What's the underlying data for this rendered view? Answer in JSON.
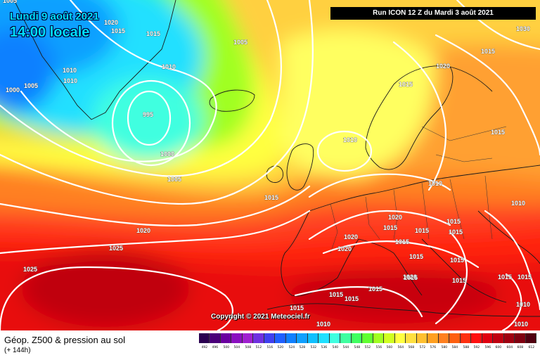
{
  "header": {
    "date": "Lundi 9 août 2021",
    "time": "14:00 locale",
    "run": "Run ICON 12 Z du Mardi 3 août 2021"
  },
  "copyright": "Copyright © 2021 Meteociel.fr",
  "legend": {
    "title": "Géop. Z500 & pression au sol",
    "subtitle": "(+ 144h)",
    "scale_values": [
      "492",
      "496",
      "500",
      "504",
      "508",
      "512",
      "516",
      "520",
      "524",
      "528",
      "532",
      "536",
      "540",
      "544",
      "548",
      "552",
      "556",
      "560",
      "564",
      "568",
      "572",
      "576",
      "580",
      "584",
      "588",
      "592",
      "596",
      "600",
      "604",
      "608",
      "612"
    ],
    "scale_colors": [
      "#2a0050",
      "#4a007a",
      "#6a00a0",
      "#8a10c0",
      "#a020d0",
      "#7030e0",
      "#4040f0",
      "#2060ff",
      "#1080ff",
      "#10a0ff",
      "#10c0ff",
      "#20e0ff",
      "#40ffe0",
      "#40ffa0",
      "#40ff60",
      "#60ff30",
      "#a0ff20",
      "#d0ff20",
      "#ffff40",
      "#ffe040",
      "#ffc030",
      "#ffa020",
      "#ff8020",
      "#ff6010",
      "#ff3010",
      "#ff1010",
      "#e00010",
      "#c00010",
      "#a00010",
      "#800010",
      "#500010"
    ]
  },
  "isobar_labels": [
    "1005",
    "1020",
    "1015",
    "1015",
    "1005",
    "1010",
    "1010",
    "1000",
    "1005",
    "995",
    "1000",
    "1005",
    "1010",
    "1015",
    "1020",
    "1025",
    "1025",
    "1030",
    "1020",
    "1015",
    "1015",
    "1010",
    "1010",
    "1015",
    "1020",
    "1015",
    "1015",
    "1015",
    "1015",
    "1015",
    "1020",
    "1020",
    "1015",
    "1015",
    "1015",
    "1015",
    "1020",
    "1015",
    "1015",
    "1015",
    "1015",
    "1015",
    "1015",
    "1010",
    "1010",
    "1010",
    "1010"
  ]
}
